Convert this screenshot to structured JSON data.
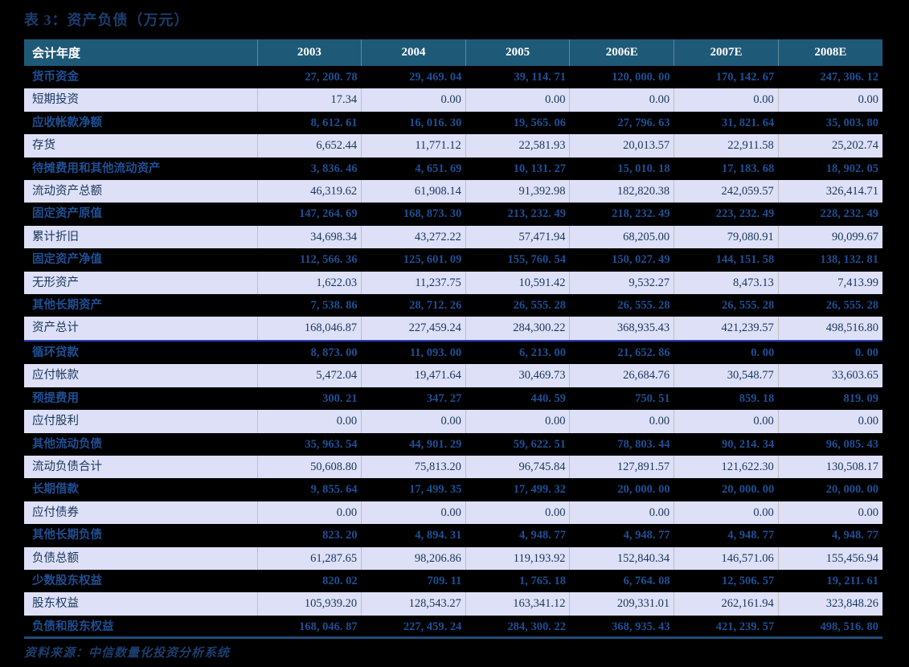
{
  "title": "表 3：资产负债（万元）",
  "source_note": "资料来源：中信数量化投资分析系统",
  "colors": {
    "page_bg": "#000000",
    "header_bg": "#1F5978",
    "header_text": "#FFFFFF",
    "dark_row_bg": "#000000",
    "dark_row_text": "#1F4F94",
    "light_row_bg": "#DEE0F7",
    "light_row_text": "#17365D",
    "divider_line": "#2A3EB8",
    "bottom_rule": "#1D4E79",
    "title_text": "#1C3D6E"
  },
  "table": {
    "type": "table",
    "columns": [
      "会计年度",
      "2003",
      "2004",
      "2005",
      "2006E",
      "2007E",
      "2008E"
    ],
    "rows": [
      {
        "label": "货币资金",
        "emphasis": true,
        "values": [
          "27, 200. 78",
          "29, 469. 04",
          "39, 114. 71",
          "120, 000. 00",
          "170, 142. 67",
          "247, 306. 12"
        ]
      },
      {
        "label": "短期投资",
        "emphasis": false,
        "values": [
          "17.34",
          "0.00",
          "0.00",
          "0.00",
          "0.00",
          "0.00"
        ]
      },
      {
        "label": "应收帐款净额",
        "emphasis": true,
        "values": [
          "8, 612. 61",
          "16, 016. 30",
          "19, 565. 06",
          "27, 796. 63",
          "31, 821. 64",
          "35, 003. 80"
        ]
      },
      {
        "label": "存货",
        "emphasis": false,
        "values": [
          "6,652.44",
          "11,771.12",
          "22,581.93",
          "20,013.57",
          "22,911.58",
          "25,202.74"
        ]
      },
      {
        "label": "待摊费用和其他流动资产",
        "emphasis": true,
        "values": [
          "3, 836. 46",
          "4, 651. 69",
          "10, 131. 27",
          "15, 010. 18",
          "17, 183. 68",
          "18, 902. 05"
        ]
      },
      {
        "label": "流动资产总额",
        "emphasis": false,
        "values": [
          "46,319.62",
          "61,908.14",
          "91,392.98",
          "182,820.38",
          "242,059.57",
          "326,414.71"
        ]
      },
      {
        "label": "固定资产原值",
        "emphasis": true,
        "values": [
          "147, 264. 69",
          "168, 873. 30",
          "213, 232. 49",
          "218, 232. 49",
          "223, 232. 49",
          "228, 232. 49"
        ]
      },
      {
        "label": "累计折旧",
        "emphasis": false,
        "values": [
          "34,698.34",
          "43,272.22",
          "57,471.94",
          "68,205.00",
          "79,080.91",
          "90,099.67"
        ]
      },
      {
        "label": "固定资产净值",
        "emphasis": true,
        "values": [
          "112, 566. 36",
          "125, 601. 09",
          "155, 760. 54",
          "150, 027. 49",
          "144, 151. 58",
          "138, 132. 81"
        ]
      },
      {
        "label": "无形资产",
        "emphasis": false,
        "values": [
          "1,622.03",
          "11,237.75",
          "10,591.42",
          "9,532.27",
          "8,473.13",
          "7,413.99"
        ]
      },
      {
        "label": "其他长期资产",
        "emphasis": true,
        "values": [
          "7, 538. 86",
          "28, 712. 26",
          "26, 555. 28",
          "26, 555. 28",
          "26, 555. 28",
          "26, 555. 28"
        ]
      },
      {
        "label": "资产总计",
        "emphasis": false,
        "divider_after": true,
        "values": [
          "168,046.87",
          "227,459.24",
          "284,300.22",
          "368,935.43",
          "421,239.57",
          "498,516.80"
        ]
      },
      {
        "label": "循环贷款",
        "emphasis": true,
        "values": [
          "8, 873. 00",
          "11, 093. 00",
          "6, 213. 00",
          "21, 652. 86",
          "0. 00",
          "0. 00"
        ]
      },
      {
        "label": "应付帐款",
        "emphasis": false,
        "values": [
          "5,472.04",
          "19,471.64",
          "30,469.73",
          "26,684.76",
          "30,548.77",
          "33,603.65"
        ]
      },
      {
        "label": "预提费用",
        "emphasis": true,
        "values": [
          "300. 21",
          "347. 27",
          "440. 59",
          "750. 51",
          "859. 18",
          "819. 09"
        ]
      },
      {
        "label": "应付股利",
        "emphasis": false,
        "values": [
          "0.00",
          "0.00",
          "0.00",
          "0.00",
          "0.00",
          "0.00"
        ]
      },
      {
        "label": "其他流动负债",
        "emphasis": true,
        "values": [
          "35, 963. 54",
          "44, 901. 29",
          "59, 622. 51",
          "78, 803. 44",
          "90, 214. 34",
          "96, 085. 43"
        ]
      },
      {
        "label": "流动负债合计",
        "emphasis": false,
        "values": [
          "50,608.80",
          "75,813.20",
          "96,745.84",
          "127,891.57",
          "121,622.30",
          "130,508.17"
        ]
      },
      {
        "label": "长期借款",
        "emphasis": true,
        "values": [
          "9, 855. 64",
          "17, 499. 35",
          "17, 499. 32",
          "20, 000. 00",
          "20, 000. 00",
          "20, 000. 00"
        ]
      },
      {
        "label": "应付债券",
        "emphasis": false,
        "values": [
          "0.00",
          "0.00",
          "0.00",
          "0.00",
          "0.00",
          "0.00"
        ]
      },
      {
        "label": "其他长期负债",
        "emphasis": true,
        "values": [
          "823. 20",
          "4, 894. 31",
          "4, 948. 77",
          "4, 948. 77",
          "4, 948. 77",
          "4, 948. 77"
        ]
      },
      {
        "label": "负债总额",
        "emphasis": false,
        "values": [
          "61,287.65",
          "98,206.86",
          "119,193.92",
          "152,840.34",
          "146,571.06",
          "155,456.94"
        ]
      },
      {
        "label": "少数股东权益",
        "emphasis": true,
        "values": [
          "820. 02",
          "709. 11",
          "1, 765. 18",
          "6, 764. 08",
          "12, 506. 57",
          "19, 211. 61"
        ]
      },
      {
        "label": "股东权益",
        "emphasis": false,
        "values": [
          "105,939.20",
          "128,543.27",
          "163,341.12",
          "209,331.01",
          "262,161.94",
          "323,848.26"
        ]
      },
      {
        "label": "负债和股东权益",
        "emphasis": true,
        "values": [
          "168, 046. 87",
          "227, 459. 24",
          "284, 300. 22",
          "368, 935. 43",
          "421, 239. 57",
          "498, 516. 80"
        ]
      }
    ]
  }
}
